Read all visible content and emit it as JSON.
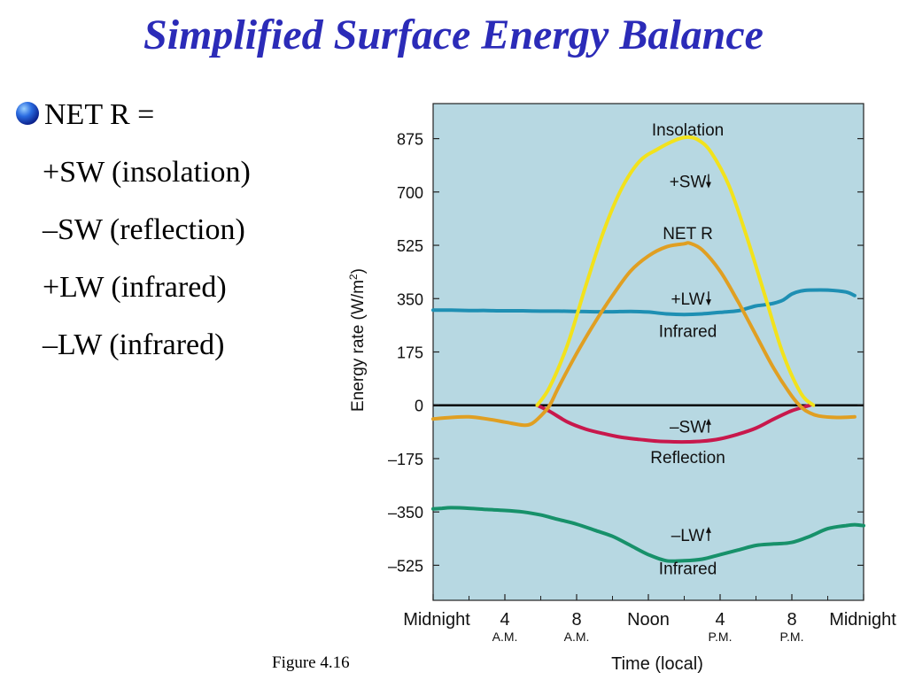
{
  "slide": {
    "title": "Simplified Surface Energy Balance",
    "bullet_head": "NET R =",
    "bullet_lines": [
      "+SW (insolation)",
      "–SW (reflection)",
      "+LW (infrared)",
      "–LW (infrared)"
    ],
    "figure_caption": "Figure  4.16"
  },
  "chart_data": {
    "type": "line",
    "ylabel": "Energy rate (W/m",
    "ylabel_sup": "2",
    "ylabel_close": ")",
    "xlabel": "Time (local)",
    "ylim": [
      -640,
      990
    ],
    "xlim": [
      0,
      24
    ],
    "yticks": [
      875,
      700,
      525,
      350,
      175,
      0,
      -175,
      -350,
      -525
    ],
    "ytick_labels": [
      "875",
      "700",
      "525",
      "350",
      "175",
      "0",
      "–175",
      "–350",
      "–525"
    ],
    "xticks": [
      {
        "x": 0,
        "label": "Midnight",
        "sub": ""
      },
      {
        "x": 4,
        "label": "4",
        "sub": "A.M."
      },
      {
        "x": 8,
        "label": "8",
        "sub": "A.M."
      },
      {
        "x": 12,
        "label": "Noon",
        "sub": ""
      },
      {
        "x": 16,
        "label": "4",
        "sub": "P.M."
      },
      {
        "x": 20,
        "label": "8",
        "sub": "P.M."
      },
      {
        "x": 24,
        "label": "Midnight",
        "sub": ""
      }
    ],
    "colors": {
      "background": "#b7d8e2",
      "insolation": "#f2e21c",
      "net_r": "#e09f22",
      "lw_in": "#1e8fb3",
      "reflection": "#c8184c",
      "lw_out": "#17916a"
    },
    "annotations": [
      {
        "key": "insolation_label",
        "text": "Insolation",
        "x": 14.2,
        "y": 885
      },
      {
        "key": "sw_in_label",
        "text": "+SW",
        "arrow": "down",
        "x": 14.2,
        "y": 715
      },
      {
        "key": "netr_label",
        "text": "NET R",
        "x": 14.2,
        "y": 545
      },
      {
        "key": "lw_in_label",
        "text": "+LW",
        "arrow": "down",
        "x": 14.2,
        "y": 330
      },
      {
        "key": "lw_in_sub",
        "text": "Infrared",
        "x": 14.2,
        "y": 225
      },
      {
        "key": "sw_out_label",
        "text": "–SW",
        "arrow": "up",
        "x": 14.2,
        "y": -90
      },
      {
        "key": "reflection_label",
        "text": "Reflection",
        "x": 14.2,
        "y": -190
      },
      {
        "key": "lw_out_label",
        "text": "–LW",
        "arrow": "up",
        "x": 14.2,
        "y": -445
      },
      {
        "key": "lw_out_sub",
        "text": "Infrared",
        "x": 14.2,
        "y": -555
      }
    ],
    "series": [
      {
        "name": "Insolation (+SW)",
        "key": "insolation",
        "x": [
          5.8,
          6.5,
          7.5,
          8.5,
          9.5,
          10.5,
          11.5,
          12.5,
          13.5,
          14.2,
          14.8,
          15.5,
          16.5,
          17.5,
          18.5,
          19.5,
          20.5,
          21.2
        ],
        "y": [
          0,
          60,
          200,
          390,
          570,
          710,
          800,
          840,
          870,
          880,
          870,
          830,
          720,
          550,
          360,
          170,
          40,
          0
        ]
      },
      {
        "name": "NET R",
        "key": "net_r",
        "x": [
          0,
          1,
          2,
          3,
          4,
          5,
          5.5,
          6,
          6.5,
          7,
          8,
          9,
          10,
          11,
          12,
          13,
          14,
          14.3,
          15,
          16,
          17,
          18,
          19,
          20,
          20.6,
          21,
          21.5,
          22.5,
          23.5
        ],
        "y": [
          -45,
          -40,
          -38,
          -45,
          -55,
          -65,
          -60,
          -35,
          0,
          60,
          170,
          270,
          360,
          440,
          490,
          520,
          530,
          532,
          510,
          440,
          340,
          230,
          120,
          30,
          -10,
          -25,
          -35,
          -40,
          -38
        ]
      },
      {
        "name": "+LW (Infrared)",
        "key": "lw_in",
        "x": [
          0,
          1,
          2,
          3,
          4,
          5,
          6,
          7,
          8,
          9,
          10,
          11,
          12,
          13,
          14,
          15,
          16,
          17,
          17.5,
          18,
          18.5,
          19,
          19.5,
          20,
          20.5,
          21,
          22,
          23,
          23.5
        ],
        "y": [
          312,
          312,
          311,
          311,
          310,
          310,
          309,
          309,
          308,
          307,
          307,
          308,
          306,
          300,
          298,
          300,
          305,
          310,
          318,
          326,
          330,
          335,
          345,
          365,
          375,
          378,
          378,
          372,
          360
        ]
      },
      {
        "name": "–SW (Reflection)",
        "key": "reflection",
        "x": [
          5.8,
          6.5,
          7.5,
          8.5,
          9.5,
          10.5,
          11.5,
          12.5,
          13.5,
          14.2,
          15,
          16,
          17,
          18,
          19,
          20,
          21
        ],
        "y": [
          0,
          -20,
          -55,
          -78,
          -93,
          -105,
          -112,
          -118,
          -120,
          -120,
          -118,
          -110,
          -95,
          -75,
          -45,
          -18,
          0
        ]
      },
      {
        "name": "–LW (Infrared)",
        "key": "lw_out",
        "x": [
          0,
          0.5,
          1,
          2,
          3,
          4,
          5,
          6,
          7,
          8,
          9,
          10,
          11,
          12,
          13,
          14,
          15,
          16,
          17,
          18,
          19,
          20,
          21,
          22,
          23,
          23.5,
          24
        ],
        "y": [
          -340,
          -338,
          -336,
          -338,
          -342,
          -345,
          -350,
          -360,
          -375,
          -390,
          -410,
          -430,
          -460,
          -490,
          -510,
          -510,
          -505,
          -490,
          -475,
          -460,
          -455,
          -450,
          -430,
          -405,
          -395,
          -392,
          -395
        ]
      }
    ]
  }
}
